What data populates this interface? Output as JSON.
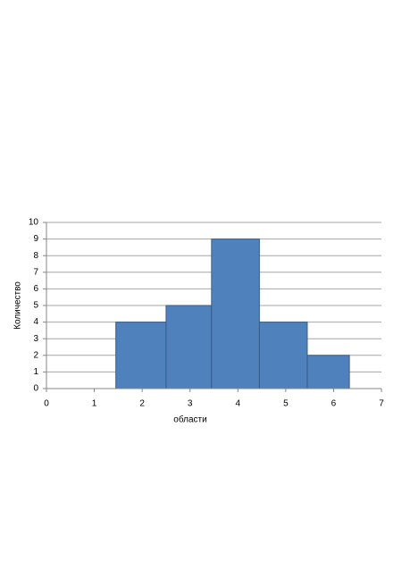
{
  "chart_data": {
    "type": "histogram",
    "x_label": "области",
    "y_label": "Количество",
    "bins": [
      1.45,
      2.5,
      3.45,
      4.45,
      5.45,
      6.33
    ],
    "values": [
      4,
      5,
      9,
      4,
      2
    ],
    "color": "#4f81bd",
    "edge_color": "#385d8a",
    "xlim": [
      0,
      7
    ],
    "xticks": [
      0,
      1,
      2,
      3,
      4,
      5,
      6,
      7
    ],
    "ylim": [
      0,
      10
    ],
    "yticks": [
      0,
      1,
      2,
      3,
      4,
      5,
      6,
      7,
      8,
      9,
      10
    ],
    "grid": true
  }
}
